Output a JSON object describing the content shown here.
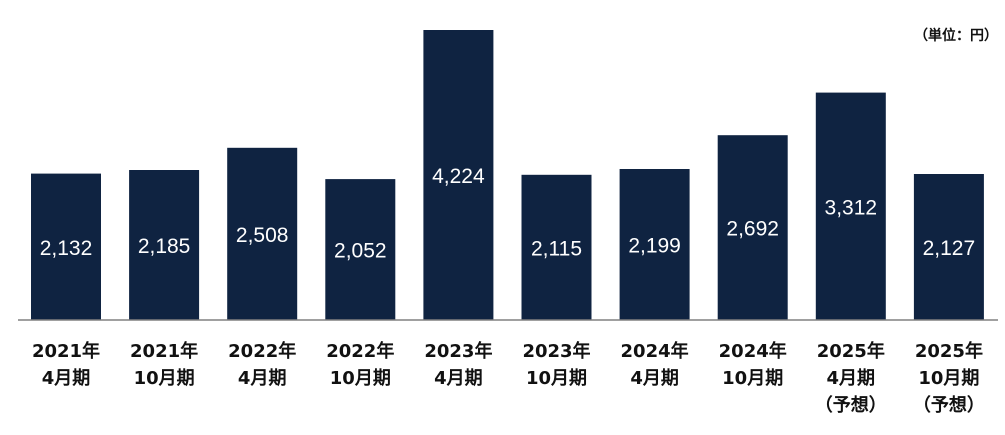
{
  "chart_data": {
    "type": "bar",
    "unit_label": "（単位：円）",
    "categories": [
      [
        "2021年",
        "4月期"
      ],
      [
        "2021年",
        "10月期"
      ],
      [
        "2022年",
        "4月期"
      ],
      [
        "2022年",
        "10月期"
      ],
      [
        "2023年",
        "4月期"
      ],
      [
        "2023年",
        "10月期"
      ],
      [
        "2024年",
        "4月期"
      ],
      [
        "2024年",
        "10月期"
      ],
      [
        "2025年",
        "4月期",
        "（予想）"
      ],
      [
        "2025年",
        "10月期",
        "（予想）"
      ]
    ],
    "values": [
      2132,
      2185,
      2508,
      2052,
      4224,
      2115,
      2199,
      2692,
      3312,
      2127
    ],
    "value_labels": [
      "2,132",
      "2,185",
      "2,508",
      "2,052",
      "4,224",
      "2,115",
      "2,199",
      "2,692",
      "3,312",
      "2,127"
    ],
    "ylim": [
      0,
      4224
    ],
    "grid": false,
    "legend": "none",
    "colors": {
      "bar": "#0f2341",
      "axis": "#808080",
      "bar_text": "#ffffff",
      "category_text": "#111111"
    }
  }
}
